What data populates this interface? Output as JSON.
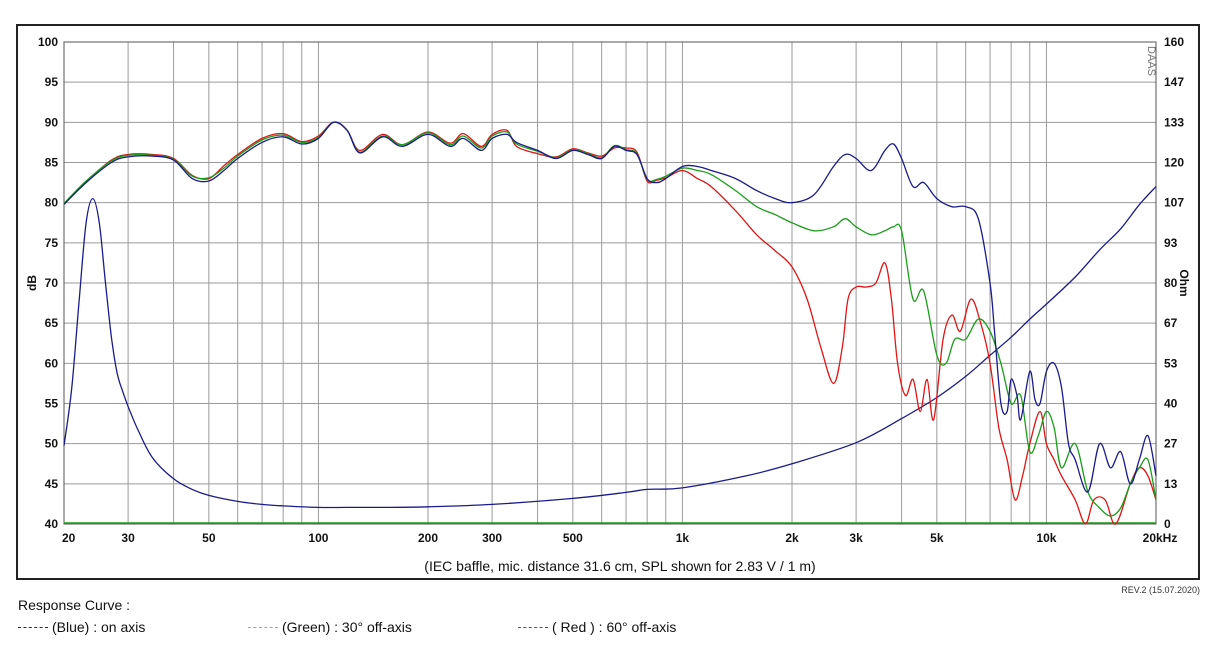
{
  "chart_data": {
    "type": "line",
    "x_scale": "log",
    "x_unit": "Hz",
    "xlim": [
      20,
      20000
    ],
    "ylim_left": [
      40,
      100
    ],
    "ylim_right": [
      0,
      160
    ],
    "ylabel_left": "dB",
    "ylabel_right": "Ohm",
    "caption": "(IEC baffle, mic. distance 31.6 cm, SPL shown for 2.83 V / 1 m)",
    "x_ticks": [
      {
        "value": 20,
        "label": "20"
      },
      {
        "value": 30,
        "label": "30"
      },
      {
        "value": 50,
        "label": "50"
      },
      {
        "value": 100,
        "label": "100"
      },
      {
        "value": 200,
        "label": "200"
      },
      {
        "value": 300,
        "label": "300"
      },
      {
        "value": 500,
        "label": "500"
      },
      {
        "value": 1000,
        "label": "1k"
      },
      {
        "value": 2000,
        "label": "2k"
      },
      {
        "value": 3000,
        "label": "3k"
      },
      {
        "value": 5000,
        "label": "5k"
      },
      {
        "value": 10000,
        "label": "10k"
      },
      {
        "value": 20000,
        "label": "20kHz"
      }
    ],
    "y_left_ticks": [
      100,
      95,
      90,
      85,
      80,
      75,
      70,
      65,
      60,
      55,
      50,
      45,
      40
    ],
    "y_right_ticks": [
      "160",
      "147",
      "133",
      "120",
      "107",
      "93",
      "80",
      "67",
      "53",
      "40",
      "27",
      "13",
      "0"
    ],
    "watermark": "DAAS",
    "series": [
      {
        "name": "(Blue)  : on axis",
        "color": "#1a1a8c",
        "x": [
          20,
          23,
          27,
          30,
          35,
          40,
          45,
          50,
          55,
          60,
          70,
          80,
          90,
          100,
          110,
          120,
          130,
          150,
          170,
          200,
          230,
          250,
          280,
          300,
          330,
          350,
          400,
          450,
          500,
          550,
          600,
          650,
          700,
          750,
          800,
          850,
          900,
          1000,
          1100,
          1200,
          1400,
          1600,
          1800,
          2000,
          2300,
          2600,
          2800,
          3000,
          3300,
          3600,
          3800,
          4000,
          4300,
          4600,
          5000,
          5500,
          6000,
          6500,
          7000,
          7200,
          7500,
          7800,
          8000,
          8300,
          8500,
          9000,
          9300,
          9600,
          10000,
          10500,
          11000,
          11500,
          12000,
          13000,
          14000,
          15000,
          16000,
          17000,
          18000,
          19000,
          20000
        ],
        "y": [
          79.8,
          82.5,
          85.0,
          85.7,
          85.8,
          85.3,
          83.0,
          82.7,
          84.0,
          85.5,
          87.5,
          88.2,
          87.3,
          88.0,
          90.0,
          89.0,
          86.2,
          88.2,
          87.0,
          88.5,
          87.0,
          88.0,
          86.5,
          88.0,
          88.5,
          87.5,
          86.5,
          85.5,
          86.5,
          86.0,
          85.5,
          87.0,
          86.5,
          86.0,
          83.0,
          82.5,
          83.0,
          84.5,
          84.5,
          84.0,
          83.0,
          81.5,
          80.5,
          80.0,
          81.0,
          84.5,
          86.0,
          85.5,
          84.0,
          86.5,
          87.3,
          85.5,
          82.0,
          82.5,
          80.5,
          79.5,
          79.5,
          78.0,
          70.0,
          64.0,
          55.0,
          54.0,
          58.0,
          56.0,
          53.0,
          59.0,
          55.5,
          55.0,
          59.0,
          60.0,
          57.0,
          50.0,
          48.0,
          44.0,
          50.0,
          47.0,
          49.0,
          45.0,
          48.0,
          51.0,
          46.0
        ]
      },
      {
        "name": "(Green) : 30° off-axis",
        "color": "#1a9e1a",
        "x": [
          20,
          23,
          27,
          30,
          35,
          40,
          45,
          50,
          55,
          60,
          70,
          80,
          90,
          100,
          110,
          120,
          130,
          150,
          170,
          200,
          230,
          250,
          280,
          300,
          330,
          350,
          400,
          450,
          500,
          550,
          600,
          650,
          700,
          750,
          800,
          850,
          900,
          1000,
          1100,
          1200,
          1400,
          1600,
          1800,
          2000,
          2300,
          2600,
          2800,
          3000,
          3300,
          3600,
          3800,
          4000,
          4300,
          4600,
          5000,
          5300,
          5600,
          6000,
          6500,
          7000,
          7500,
          8000,
          8500,
          9000,
          9500,
          10000,
          10500,
          11000,
          12000,
          13000,
          14000,
          15000,
          16000,
          17000,
          18000,
          19000,
          20000
        ],
        "y": [
          79.9,
          82.7,
          85.2,
          85.9,
          85.9,
          85.4,
          83.3,
          83.1,
          84.3,
          85.8,
          87.8,
          88.4,
          87.5,
          88.1,
          90.0,
          89.0,
          86.3,
          88.3,
          87.2,
          88.7,
          87.2,
          88.3,
          86.8,
          88.3,
          88.8,
          87.3,
          86.4,
          85.6,
          86.6,
          86.1,
          85.6,
          87.1,
          86.6,
          86.1,
          82.9,
          82.9,
          83.3,
          84.3,
          84.0,
          83.5,
          81.5,
          79.5,
          78.5,
          77.5,
          76.5,
          77.0,
          78.0,
          77.0,
          76.0,
          76.5,
          77.0,
          76.5,
          68.0,
          69.0,
          61.0,
          60.0,
          63.0,
          63.0,
          65.5,
          64.0,
          60.0,
          55.0,
          56.0,
          49.0,
          51.0,
          54.0,
          52.0,
          47.0,
          50.0,
          44.0,
          42.0,
          41.0,
          42.0,
          45.0,
          47.0,
          48.0,
          43.0
        ]
      },
      {
        "name": "( Red ) : 60° off-axis",
        "color": "#e01515",
        "x": [
          20,
          23,
          27,
          30,
          35,
          40,
          45,
          50,
          55,
          60,
          70,
          80,
          90,
          100,
          110,
          120,
          130,
          150,
          170,
          200,
          230,
          250,
          280,
          300,
          330,
          350,
          400,
          450,
          500,
          550,
          600,
          650,
          700,
          750,
          800,
          850,
          900,
          1000,
          1100,
          1200,
          1400,
          1600,
          1800,
          2000,
          2200,
          2400,
          2600,
          2750,
          2850,
          3000,
          3200,
          3400,
          3600,
          3750,
          3900,
          4100,
          4300,
          4500,
          4700,
          4900,
          5200,
          5500,
          5800,
          6200,
          6600,
          7000,
          7400,
          7800,
          8200,
          8600,
          9000,
          9600,
          10000,
          10500,
          11000,
          12000,
          12800,
          13500,
          14500,
          15500,
          17000,
          18000,
          19000,
          20000
        ],
        "y": [
          79.8,
          82.6,
          85.3,
          86.0,
          86.0,
          85.5,
          83.4,
          83.0,
          84.6,
          86.0,
          88.0,
          88.6,
          87.6,
          88.3,
          90.0,
          89.0,
          86.5,
          88.5,
          87.2,
          88.8,
          87.4,
          88.6,
          87.0,
          88.5,
          89.0,
          87.0,
          86.1,
          85.7,
          86.7,
          86.2,
          85.8,
          86.8,
          86.8,
          86.3,
          82.7,
          82.8,
          83.1,
          84.0,
          83.0,
          82.0,
          79.0,
          76.0,
          74.0,
          72.0,
          68.0,
          62.0,
          57.5,
          62.0,
          68.0,
          69.5,
          69.5,
          70.0,
          72.5,
          68.0,
          60.0,
          56.0,
          58.0,
          54.0,
          58.0,
          53.0,
          63.0,
          66.0,
          64.0,
          68.0,
          65.0,
          60.0,
          52.0,
          48.0,
          43.0,
          46.0,
          50.0,
          54.0,
          50.0,
          48.0,
          46.0,
          43.0,
          40.0,
          43.0,
          43.0,
          40.0,
          45.0,
          47.0,
          46.0,
          43.0
        ]
      },
      {
        "name": "Impedance",
        "color": "#1a1a8c",
        "axis": "right",
        "x": [
          20,
          21,
          22,
          23,
          24,
          25,
          26,
          27,
          28,
          29,
          30,
          32,
          35,
          40,
          45,
          50,
          60,
          70,
          80,
          100,
          120,
          150,
          200,
          300,
          500,
          700,
          800,
          1000,
          1500,
          2000,
          3000,
          4000,
          5000,
          6000,
          7000,
          8000,
          9000,
          10000,
          12000,
          14000,
          16000,
          18000,
          20000
        ],
        "y": [
          26,
          45,
          74,
          100,
          108,
          100,
          80,
          62,
          50,
          44,
          39,
          31,
          22,
          15,
          11.5,
          9.5,
          7.5,
          6.5,
          6,
          5.5,
          5.5,
          5.5,
          5.7,
          6.5,
          8.5,
          10.5,
          11.5,
          12,
          16,
          20,
          27,
          35,
          42,
          49,
          56,
          62,
          68,
          73,
          82,
          91,
          98,
          106,
          112
        ]
      }
    ]
  },
  "legend": {
    "title": "Response Curve :",
    "items": [
      {
        "color": "#1a1a8c",
        "text": "(Blue)  : on axis"
      },
      {
        "color": "#8cc43c",
        "text": "(Green) : 30° off-axis"
      },
      {
        "color": "#e01515",
        "text": "( Red ) : 60° off-axis"
      }
    ]
  },
  "revision": "REV.2 (15.07.2020)"
}
